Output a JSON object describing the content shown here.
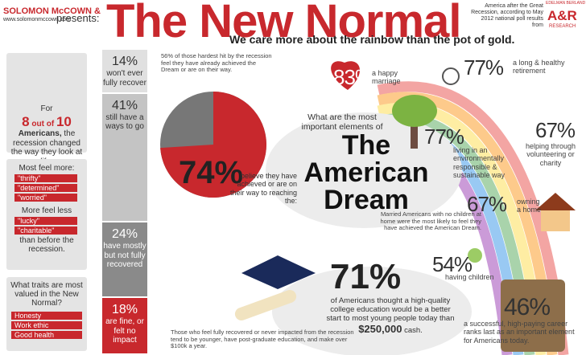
{
  "header": {
    "brand": "SOLOMON McCOWN &",
    "url": "www.solomonmccown.com",
    "presents": "presents:",
    "title": "The New Normal",
    "source": "America after the Great Recession, according to May 2012 national poll results from",
    "source_logo": "EDELMAN BERLAND",
    "source_logo_mark": "A&R",
    "source_logo_sub": "RESEARCH",
    "subtitle": "We care more about the rainbow than the pot of gold."
  },
  "recession": {
    "lead": "For",
    "count": 8,
    "of": "out of",
    "total": 10,
    "who": "Americans,",
    "rest": "the recession changed the way they look at life."
  },
  "feelings": {
    "more_title": "Most feel more:",
    "more": [
      "\"thrifty\"",
      "\"determined\"",
      "\"worried\""
    ],
    "less_title": "More feel less",
    "less": [
      "\"lucky\"",
      "\"charitable\""
    ],
    "tail": "than before the recession."
  },
  "traits": {
    "question": "What traits are most valued in the New Normal?",
    "items": [
      "Honesty",
      "Work ethic",
      "Good health"
    ]
  },
  "recovery": [
    {
      "value": 14,
      "label": "14%",
      "text": "won't ever fully recover"
    },
    {
      "value": 41,
      "label": "41%",
      "text": "still have a ways to go"
    },
    {
      "value": 24,
      "label": "24%",
      "text": "have mostly but not fully recovered"
    },
    {
      "value": 18,
      "label": "18%",
      "text": "are fine, or felt no impact"
    }
  ],
  "recovery_note": "Those who feel fully recovered or never impacted from the recession tend to be younger, have post-graduate education, and make over $100k a year.",
  "pie": {
    "note": "56% of those hardest hit by the recession feel they have already achieved the Dream or are on their way.",
    "value": 74,
    "label": "74%",
    "caption": "believe they have achieved or are on their way to reaching the:"
  },
  "dream": {
    "question": "What are the most important elements of",
    "title": [
      "The",
      "American",
      "Dream"
    ]
  },
  "elements": [
    {
      "label": "83%",
      "text": "a happy marriage"
    },
    {
      "label": "77%",
      "text": "a long & healthy retirement"
    },
    {
      "label": "77%",
      "text": "living in an environmentally responsible & sustainable way"
    },
    {
      "label": "67%",
      "text": "helping through volunteering or charity"
    },
    {
      "label": "67%",
      "text": "owning a home"
    },
    {
      "label": "54%",
      "text": "having children"
    },
    {
      "label": "46%",
      "text": "a successful, high-paying career ranks last as an important element for Americans today."
    }
  ],
  "married_note": "Married Americans with no children at home were the most likely to feel they have achieved the American Dream.",
  "college": {
    "label": "71%",
    "text": "of Americans thought a high-quality college education would be a better start to most young people today than",
    "amount": "$250,000",
    "tail": "cash."
  }
}
